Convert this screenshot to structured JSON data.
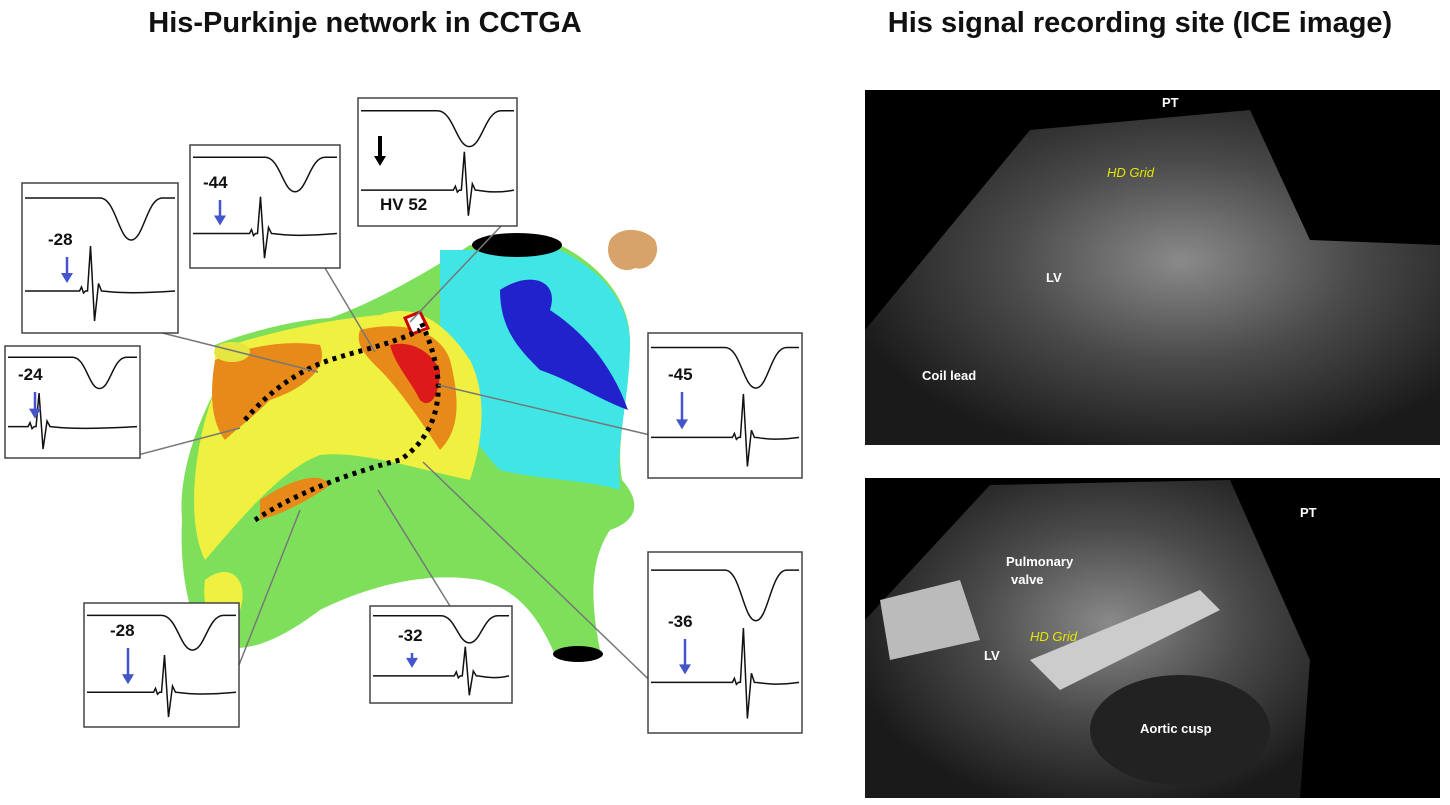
{
  "left": {
    "title": "His-Purkinje network in CCTGA",
    "insets": [
      {
        "label": "-28"
      },
      {
        "label": "-24"
      },
      {
        "label": "-44"
      },
      {
        "label": "HV 52"
      },
      {
        "label": "-45"
      },
      {
        "label": "-36"
      },
      {
        "label": "-32"
      },
      {
        "label": "-28"
      }
    ]
  },
  "right": {
    "title": "His signal recording site (ICE image)",
    "images": [
      {
        "labels": [
          "PT",
          "HD Grid",
          "LV",
          "Coil lead"
        ]
      },
      {
        "labels": [
          "PT",
          "Pulmonary",
          "valve",
          "HD Grid",
          "LV",
          "Aortic cusp"
        ]
      }
    ]
  }
}
